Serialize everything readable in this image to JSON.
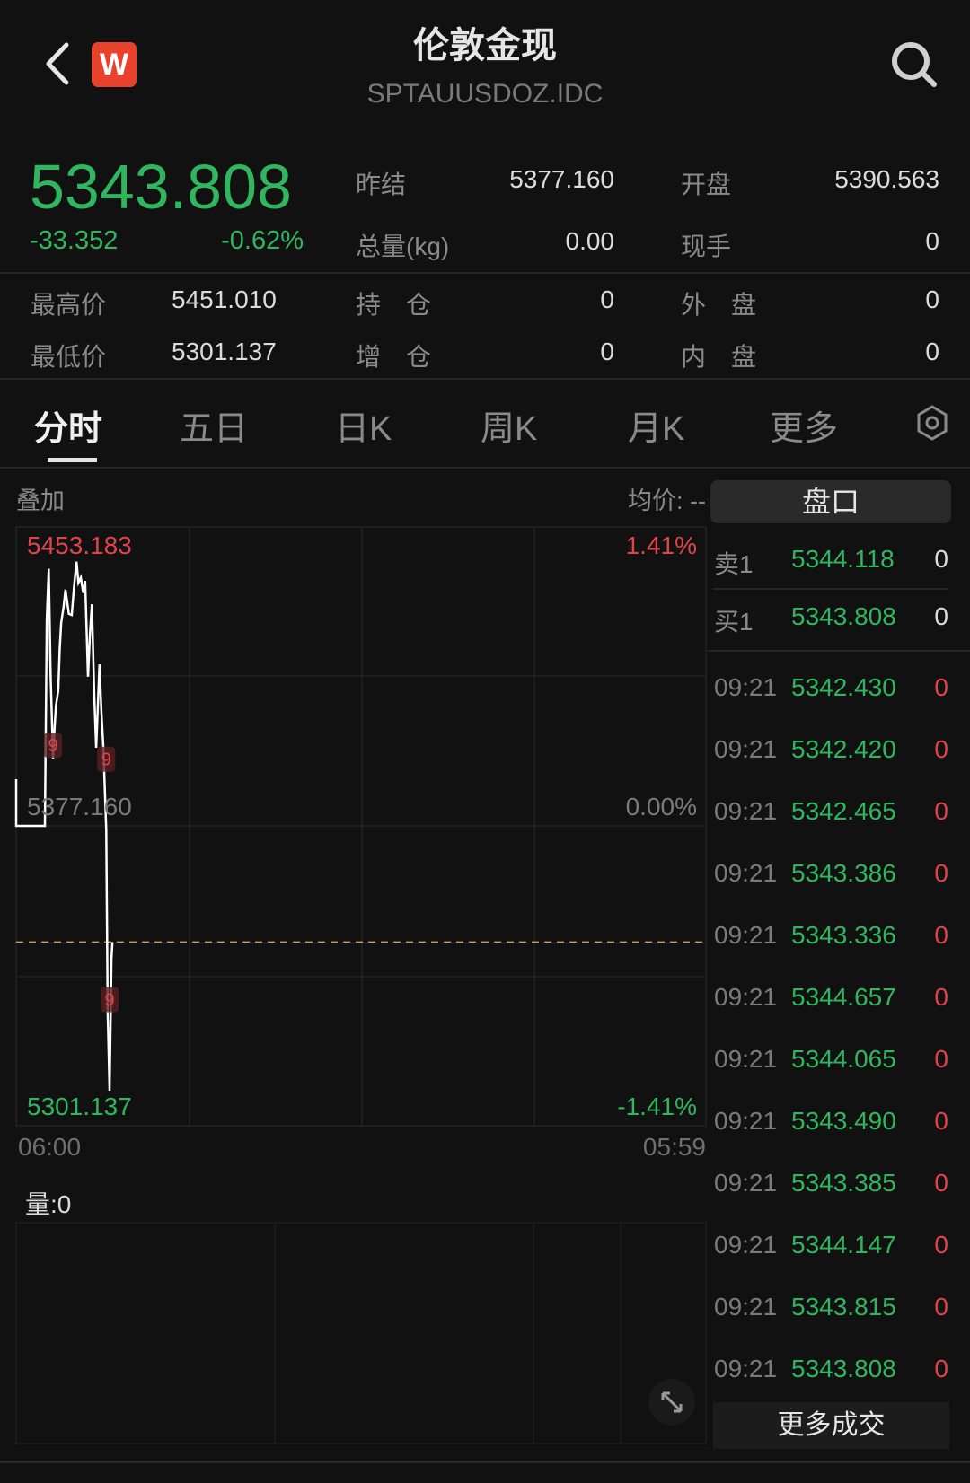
{
  "header": {
    "title": "伦敦金现",
    "subtitle": "SPTAUUSDOZ.IDC",
    "logo_letter": "W",
    "back_icon": "chevron-left-icon",
    "search_icon": "search-icon"
  },
  "quote": {
    "price": "5343.808",
    "change": "-33.352",
    "change_pct": "-0.62%",
    "stats": [
      {
        "label": "昨结",
        "value": "5377.160"
      },
      {
        "label": "开盘",
        "value": "5390.563"
      },
      {
        "label": "总量(kg)",
        "value": "0.00"
      },
      {
        "label": "现手",
        "value": "0"
      },
      {
        "label": "最高价",
        "value": "5451.010"
      },
      {
        "label": "持　仓",
        "value": "0"
      },
      {
        "label": "外　盘",
        "value": "0"
      },
      {
        "label": "最低价",
        "value": "5301.137"
      },
      {
        "label": "增　仓",
        "value": "0"
      },
      {
        "label": "内　盘",
        "value": "0"
      }
    ]
  },
  "tabs": [
    {
      "label": "分时",
      "active": true
    },
    {
      "label": "五日"
    },
    {
      "label": "日K"
    },
    {
      "label": "周K"
    },
    {
      "label": "月K"
    },
    {
      "label": "更多"
    }
  ],
  "toolbar": {
    "overlay": "叠加",
    "avg_price": "均价: --",
    "settings_icon": "gear-hexagon-icon"
  },
  "chart_data": {
    "type": "line",
    "title": "",
    "x_start_label": "06:00",
    "x_end_label": "05:59",
    "y_max_label": "5453.183",
    "y_mid_label": "5377.160",
    "y_min_label": "5301.137",
    "pct_max_label": "1.41%",
    "pct_mid_label": "0.00%",
    "pct_min_label": "-1.41%",
    "ylim": [
      5301.137,
      5453.183
    ],
    "prev_close": 5377.16,
    "current_price": 5343.808,
    "grid": true,
    "line_color": "#ffffff",
    "points": [
      [
        "06:00",
        5390.563
      ],
      [
        "06:00",
        5377.16
      ],
      [
        "07:00",
        5377.16
      ],
      [
        "07:04",
        5436.7
      ],
      [
        "07:08",
        5451.0
      ],
      [
        "07:12",
        5420.0
      ],
      [
        "07:17",
        5396.5
      ],
      [
        "07:20",
        5405.0
      ],
      [
        "07:23",
        5411.7
      ],
      [
        "07:28",
        5416.0
      ],
      [
        "07:31",
        5428.0
      ],
      [
        "07:34",
        5435.4
      ],
      [
        "07:39",
        5440.0
      ],
      [
        "07:43",
        5445.0
      ],
      [
        "07:50",
        5438.0
      ],
      [
        "07:56",
        5437.7
      ],
      [
        "08:01",
        5446.0
      ],
      [
        "08:06",
        5453.0
      ],
      [
        "08:10",
        5447.0
      ],
      [
        "08:15",
        5448.5
      ],
      [
        "08:20",
        5444.0
      ],
      [
        "08:24",
        5447.5
      ],
      [
        "08:30",
        5420.0
      ],
      [
        "08:34",
        5432.0
      ],
      [
        "08:38",
        5440.8
      ],
      [
        "08:43",
        5415.0
      ],
      [
        "08:47",
        5399.6
      ],
      [
        "08:54",
        5423.5
      ],
      [
        "08:58",
        5410.0
      ],
      [
        "09:02",
        5399.6
      ],
      [
        "09:08",
        5375.9
      ],
      [
        "09:11",
        5323.8
      ],
      [
        "09:15",
        5301.137
      ],
      [
        "09:17",
        5320.0
      ],
      [
        "09:19",
        5339.0
      ],
      [
        "09:21",
        5343.808
      ]
    ],
    "markers": [
      {
        "time": "07:17",
        "price": 5390.0,
        "label": "9"
      },
      {
        "time": "09:08",
        "price": 5386.0,
        "label": "9"
      },
      {
        "time": "09:15",
        "price": 5317.0,
        "label": "9"
      }
    ],
    "volume_label": "量:0"
  },
  "order_book": {
    "button": "盘口",
    "levels": [
      {
        "label": "卖1",
        "price": "5344.118",
        "qty": "0"
      },
      {
        "label": "买1",
        "price": "5343.808",
        "qty": "0"
      }
    ],
    "trades": [
      {
        "time": "09:21",
        "price": "5342.430",
        "qty": "0"
      },
      {
        "time": "09:21",
        "price": "5342.420",
        "qty": "0"
      },
      {
        "time": "09:21",
        "price": "5342.465",
        "qty": "0"
      },
      {
        "time": "09:21",
        "price": "5343.386",
        "qty": "0"
      },
      {
        "time": "09:21",
        "price": "5343.336",
        "qty": "0"
      },
      {
        "time": "09:21",
        "price": "5344.657",
        "qty": "0"
      },
      {
        "time": "09:21",
        "price": "5344.065",
        "qty": "0"
      },
      {
        "time": "09:21",
        "price": "5343.490",
        "qty": "0"
      },
      {
        "time": "09:21",
        "price": "5343.385",
        "qty": "0"
      },
      {
        "time": "09:21",
        "price": "5344.147",
        "qty": "0"
      },
      {
        "time": "09:21",
        "price": "5343.815",
        "qty": "0"
      },
      {
        "time": "09:21",
        "price": "5343.808",
        "qty": "0"
      }
    ],
    "more_trades": "更多成交"
  },
  "colors": {
    "up": "#e0434a",
    "down": "#2fb65e",
    "background": "#111111",
    "logo": "#e8412c"
  },
  "expand_icon": "expand-arrows-icon"
}
